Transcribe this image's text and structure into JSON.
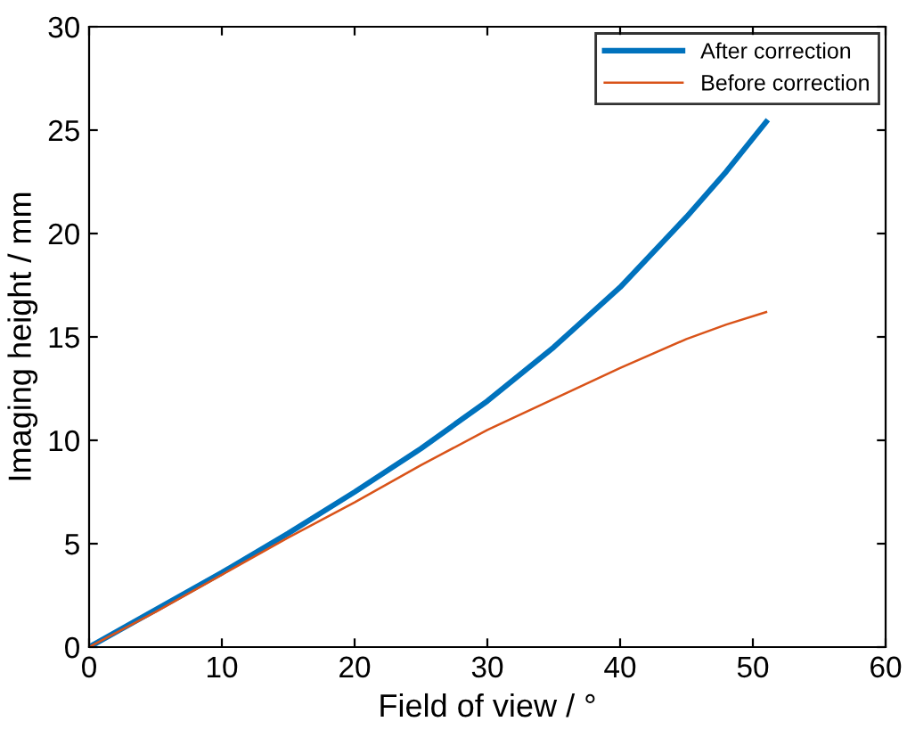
{
  "chart_data": {
    "type": "line",
    "xlabel": "Field of view / °",
    "ylabel": "Imaging height / mm",
    "xlim": [
      0,
      60
    ],
    "ylim": [
      0,
      30
    ],
    "xticks": [
      0,
      10,
      20,
      30,
      40,
      50,
      60
    ],
    "yticks": [
      0,
      5,
      10,
      15,
      20,
      25,
      30
    ],
    "grid": false,
    "legend": "top right",
    "marker": "none",
    "line_style": "solid",
    "series": [
      {
        "name": "After correction",
        "color": "#0072bd",
        "x": [
          0,
          5,
          10,
          15,
          20,
          25,
          30,
          35,
          40,
          45,
          48,
          51
        ],
        "values": [
          0,
          1.8,
          3.6,
          5.5,
          7.5,
          9.6,
          11.9,
          14.5,
          17.4,
          20.8,
          23.0,
          25.4
        ]
      },
      {
        "name": "Before correction",
        "color": "#d95319",
        "x": [
          0,
          5,
          10,
          15,
          20,
          25,
          30,
          35,
          40,
          45,
          48,
          51
        ],
        "values": [
          0,
          1.7,
          3.5,
          5.3,
          7.0,
          8.8,
          10.5,
          12.0,
          13.5,
          14.9,
          15.6,
          16.2
        ]
      }
    ]
  }
}
